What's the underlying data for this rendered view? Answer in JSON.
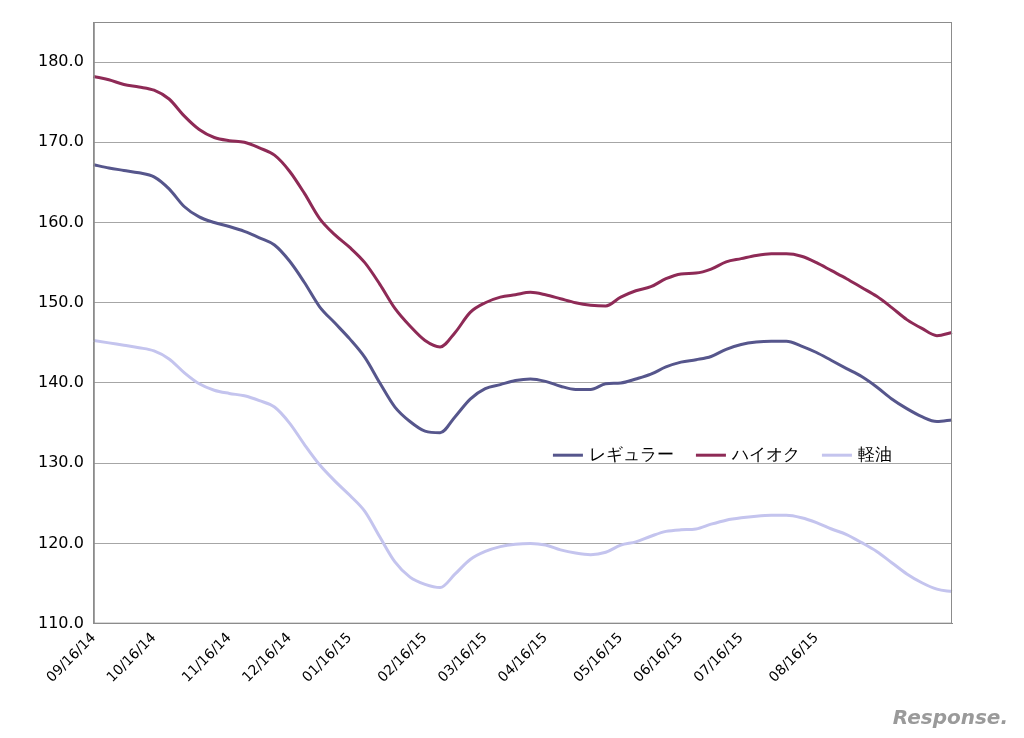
{
  "chart_data": {
    "type": "line",
    "categories": [
      "09/16/14",
      null,
      null,
      null,
      "10/16/14",
      null,
      null,
      null,
      null,
      "11/16/14",
      null,
      null,
      null,
      "12/16/14",
      null,
      null,
      null,
      "01/16/15",
      null,
      null,
      null,
      null,
      "02/16/15",
      null,
      null,
      null,
      "03/16/15",
      null,
      null,
      null,
      "04/16/15",
      null,
      null,
      null,
      null,
      "05/16/15",
      null,
      null,
      null,
      "06/16/15",
      null,
      null,
      null,
      "07/16/15",
      null,
      null,
      null,
      null,
      "08/16/15",
      null,
      null,
      null,
      null,
      null,
      null,
      null,
      null,
      null
    ],
    "series": [
      {
        "name": "レギュラー",
        "color": "#56568c",
        "values": [
          167.2,
          166.8,
          166.5,
          166.2,
          165.7,
          164.2,
          162.0,
          160.7,
          160.0,
          159.5,
          158.9,
          158.1,
          157.2,
          155.2,
          152.5,
          149.5,
          147.5,
          145.5,
          143.2,
          140.0,
          137.0,
          135.2,
          134.0,
          133.8,
          135.8,
          138.0,
          139.3,
          139.8,
          140.3,
          140.5,
          140.2,
          139.6,
          139.2,
          139.2,
          139.9,
          140.0,
          140.5,
          141.1,
          142.0,
          142.6,
          142.9,
          143.3,
          144.2,
          144.8,
          145.1,
          145.2,
          145.2,
          144.6,
          143.8,
          142.8,
          141.8,
          140.8,
          139.5,
          138.0,
          136.8,
          135.8,
          135.2,
          135.4
        ]
      },
      {
        "name": "ハイオク",
        "color": "#8e2a56",
        "values": [
          178.2,
          177.8,
          177.2,
          176.9,
          176.5,
          175.4,
          173.3,
          171.6,
          170.6,
          170.2,
          170.0,
          169.3,
          168.4,
          166.4,
          163.6,
          160.5,
          158.5,
          156.9,
          155.0,
          152.3,
          149.3,
          147.1,
          145.3,
          144.5,
          146.3,
          148.8,
          150.0,
          150.7,
          151.0,
          151.3,
          151.0,
          150.5,
          150.0,
          149.7,
          149.6,
          150.7,
          151.5,
          152.0,
          153.0,
          153.6,
          153.7,
          154.2,
          155.1,
          155.5,
          155.9,
          156.1,
          156.1,
          155.8,
          155.0,
          154.0,
          153.0,
          151.9,
          150.8,
          149.4,
          147.9,
          146.8,
          145.9,
          146.3
        ]
      },
      {
        "name": "軽油",
        "color": "#c4c4ee",
        "values": [
          145.3,
          145.0,
          144.7,
          144.4,
          144.0,
          143.0,
          141.3,
          139.9,
          139.1,
          138.7,
          138.4,
          137.8,
          137.0,
          135.0,
          132.3,
          129.8,
          127.8,
          126.0,
          124.0,
          120.8,
          117.7,
          115.8,
          114.9,
          114.5,
          116.2,
          118.0,
          119.0,
          119.6,
          119.9,
          120.0,
          119.8,
          119.2,
          118.8,
          118.6,
          118.9,
          119.8,
          120.2,
          120.9,
          121.5,
          121.7,
          121.8,
          122.4,
          122.9,
          123.2,
          123.4,
          123.5,
          123.5,
          123.2,
          122.6,
          121.8,
          121.1,
          120.1,
          119.0,
          117.6,
          116.2,
          115.1,
          114.3,
          114.0
        ]
      }
    ],
    "ylim": [
      110,
      185
    ],
    "yticks": [
      {
        "value": 110,
        "label": "110.0"
      },
      {
        "value": 120,
        "label": "120.0"
      },
      {
        "value": 130,
        "label": "130.0"
      },
      {
        "value": 140,
        "label": "140.0"
      },
      {
        "value": 150,
        "label": "150.0"
      },
      {
        "value": 160,
        "label": "160.0"
      },
      {
        "value": 170,
        "label": "170.0"
      },
      {
        "value": 180,
        "label": "180.0"
      }
    ],
    "grid": true,
    "legend": "lower right",
    "marker": "none",
    "line_style": "solid",
    "annotations": [
      "Response."
    ]
  }
}
